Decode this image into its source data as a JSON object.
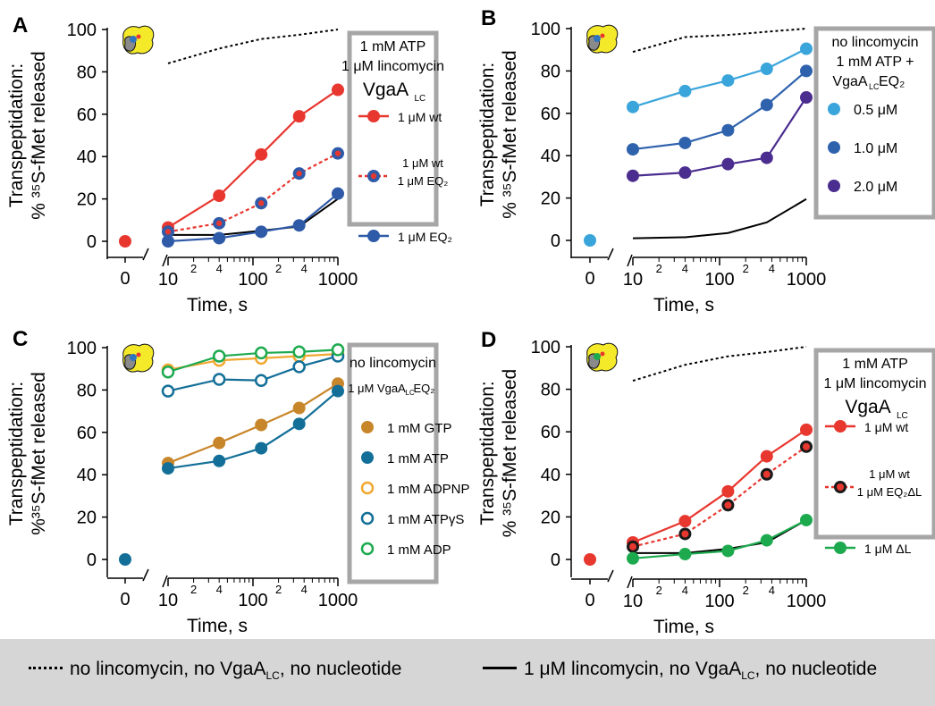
{
  "colors": {
    "red": "#e8372f",
    "blue_dark": "#2f5aa8",
    "light_blue": "#3aa5db",
    "mid_blue": "#2f62ad",
    "purple": "#4b2c8f",
    "brown": "#c8862a",
    "teal": "#136f98",
    "orange": "#f0a830",
    "green": "#1daa4f",
    "legend_border": "#a6a6a6"
  },
  "footer": {
    "dotted_text": "no lincomycin, no VgaA",
    "dotted_sub": "LC",
    "dotted_tail": ", no nucleotide",
    "solid_text": "1 μM lincomycin, no VgaA",
    "solid_sub": "LC",
    "solid_tail": ", no nucleotide"
  },
  "chart_data": [
    {
      "panel": "A",
      "type": "line",
      "ylabel": "Transpeptidation:",
      "ylabel2": "% ³⁵S-fMet released",
      "xlabel": "Time, s",
      "xscale": "log",
      "xlim": [
        10,
        1000
      ],
      "ylim": [
        0,
        100
      ],
      "yticks": [
        0,
        20,
        40,
        60,
        80,
        100
      ],
      "x": [
        10,
        40,
        125,
        350,
        1000
      ],
      "reference_dotted": {
        "x": [
          10,
          40,
          125,
          350,
          1000
        ],
        "y": [
          84,
          91,
          95.5,
          97.5,
          100
        ]
      },
      "reference_solid": {
        "x": [
          10,
          40,
          125,
          350,
          1000
        ],
        "y": [
          3,
          3,
          5,
          7,
          20
        ]
      },
      "legend": {
        "title1": "1 mM ATP",
        "title2": "1 μM lincomycin",
        "title3": "VgaA",
        "title3_sub": "LC"
      },
      "series": [
        {
          "name": "1 μM wt",
          "color": "#e8372f",
          "style": "solid",
          "marker": "filled",
          "t0": 0,
          "y": [
            6.5,
            21.5,
            41,
            59,
            71.5
          ]
        },
        {
          "name": "1 μM wt / 1 μM EQ₂",
          "color": "#e8372f",
          "style": "dotted",
          "marker": "blueRed",
          "t0": 0,
          "y": [
            4.5,
            8.5,
            18,
            32,
            41.5
          ]
        },
        {
          "name": "1 μM EQ₂",
          "color": "#2f5aa8",
          "style": "solid",
          "marker": "filled",
          "t0": 0,
          "y": [
            0,
            1.5,
            4.5,
            7.5,
            22.5
          ]
        }
      ]
    },
    {
      "panel": "B",
      "type": "line",
      "ylabel": "Transpeptidation:",
      "ylabel2": "% ³⁵S-fMet released",
      "xlabel": "Time, s",
      "xscale": "log",
      "xlim": [
        10,
        1000
      ],
      "ylim": [
        0,
        100
      ],
      "yticks": [
        0,
        20,
        40,
        60,
        80,
        100
      ],
      "x": [
        10,
        40,
        125,
        350,
        1000
      ],
      "reference_dotted": {
        "x": [
          10,
          40,
          125,
          350,
          1000
        ],
        "y": [
          89,
          96,
          97,
          98.5,
          100
        ]
      },
      "reference_solid": {
        "x": [
          10,
          40,
          125,
          350,
          1000
        ],
        "y": [
          1,
          1.5,
          3.5,
          8.5,
          19.5
        ]
      },
      "legend": {
        "title1": "no lincomycin",
        "title2": "1 mM ATP +",
        "title3": "VgaA",
        "title3_sub": "LC",
        "title3_tail": "EQ₂"
      },
      "series": [
        {
          "name": "0.5 μM",
          "color": "#3aa5db",
          "style": "solid",
          "marker": "filled",
          "t0": 0,
          "y": [
            63,
            70.5,
            75.5,
            81,
            90.5
          ]
        },
        {
          "name": "1.0 μM",
          "color": "#2f62ad",
          "style": "solid",
          "marker": "filled",
          "t0": 0,
          "y": [
            43,
            46,
            52,
            64,
            80
          ]
        },
        {
          "name": "2.0 μM",
          "color": "#4b2c8f",
          "style": "solid",
          "marker": "filled",
          "t0": 0,
          "y": [
            30.5,
            32,
            36,
            39,
            67.5
          ]
        }
      ]
    },
    {
      "panel": "C",
      "type": "line",
      "ylabel": "Transpeptidation:",
      "ylabel2": "%³⁵S-fMet released",
      "xlabel": "Time, s",
      "xscale": "log",
      "xlim": [
        10,
        1000
      ],
      "ylim": [
        0,
        100
      ],
      "yticks": [
        0,
        20,
        40,
        60,
        80,
        100
      ],
      "x": [
        10,
        40,
        125,
        350,
        1000
      ],
      "legend": {
        "title1": "no lincomycin",
        "title2": "1 μM VgaA",
        "title2_sub": "LC",
        "title2_tail": " EQ₂"
      },
      "series": [
        {
          "name": "1 mM GTP",
          "color": "#c8862a",
          "style": "solid",
          "marker": "filled",
          "y": [
            45.5,
            55,
            63.5,
            71.5,
            83
          ]
        },
        {
          "name": "1 mM ATP",
          "color": "#136f98",
          "style": "solid",
          "marker": "filled",
          "t0": 0,
          "y": [
            43,
            46.5,
            52.5,
            64,
            79.5
          ]
        },
        {
          "name": "1 mM ADPNP",
          "color": "#f0a830",
          "style": "solid",
          "marker": "open",
          "y": [
            89.5,
            94,
            95,
            96,
            97
          ]
        },
        {
          "name": "1 mM ATPγS",
          "color": "#136f98",
          "style": "solid",
          "marker": "open",
          "y": [
            79.5,
            85,
            84.5,
            91,
            96
          ]
        },
        {
          "name": "1 mM ADP",
          "color": "#1daa4f",
          "style": "solid",
          "marker": "open",
          "y": [
            88.5,
            96,
            97.5,
            98,
            99
          ]
        }
      ]
    },
    {
      "panel": "D",
      "type": "line",
      "ylabel": "Transpeptidation:",
      "ylabel2": "% ³⁵S-fMet released",
      "xlabel": "Time, s",
      "xscale": "log",
      "xlim": [
        10,
        1000
      ],
      "ylim": [
        0,
        100
      ],
      "yticks": [
        0,
        20,
        40,
        60,
        80,
        100
      ],
      "x": [
        10,
        40,
        125,
        350,
        1000
      ],
      "reference_dotted": {
        "x": [
          10,
          40,
          125,
          350,
          1000
        ],
        "y": [
          84,
          91.5,
          95.5,
          97.5,
          100
        ]
      },
      "reference_solid": {
        "x": [
          10,
          40,
          125,
          350,
          1000
        ],
        "y": [
          3,
          3,
          5,
          8,
          18.5
        ]
      },
      "legend": {
        "title1": "1 mM ATP",
        "title2": "1 μM lincomycin",
        "title3": "VgaA",
        "title3_sub": "LC"
      },
      "series": [
        {
          "name": "1 μM wt",
          "color": "#e8372f",
          "style": "solid",
          "marker": "filled",
          "t0": 0,
          "y": [
            8,
            18,
            32,
            48.5,
            61
          ]
        },
        {
          "name": "1 μM wt / 1 μM EQ₂ΔL",
          "color": "#e8372f",
          "style": "dotted",
          "marker": "blackRed",
          "y": [
            6,
            12,
            25.5,
            40,
            53
          ]
        },
        {
          "name": "1 μM ΔL",
          "color": "#1daa4f",
          "style": "solid",
          "marker": "filled",
          "y": [
            0.5,
            2.5,
            4,
            9,
            18.5
          ]
        }
      ]
    }
  ],
  "panel_labels": [
    "A",
    "B",
    "C",
    "D"
  ],
  "axis_text": {
    "zero": "0",
    "xtick_10": "10",
    "xtick_100": "100",
    "xtick_1000": "1000",
    "minor_2": "2",
    "minor_4": "4"
  }
}
